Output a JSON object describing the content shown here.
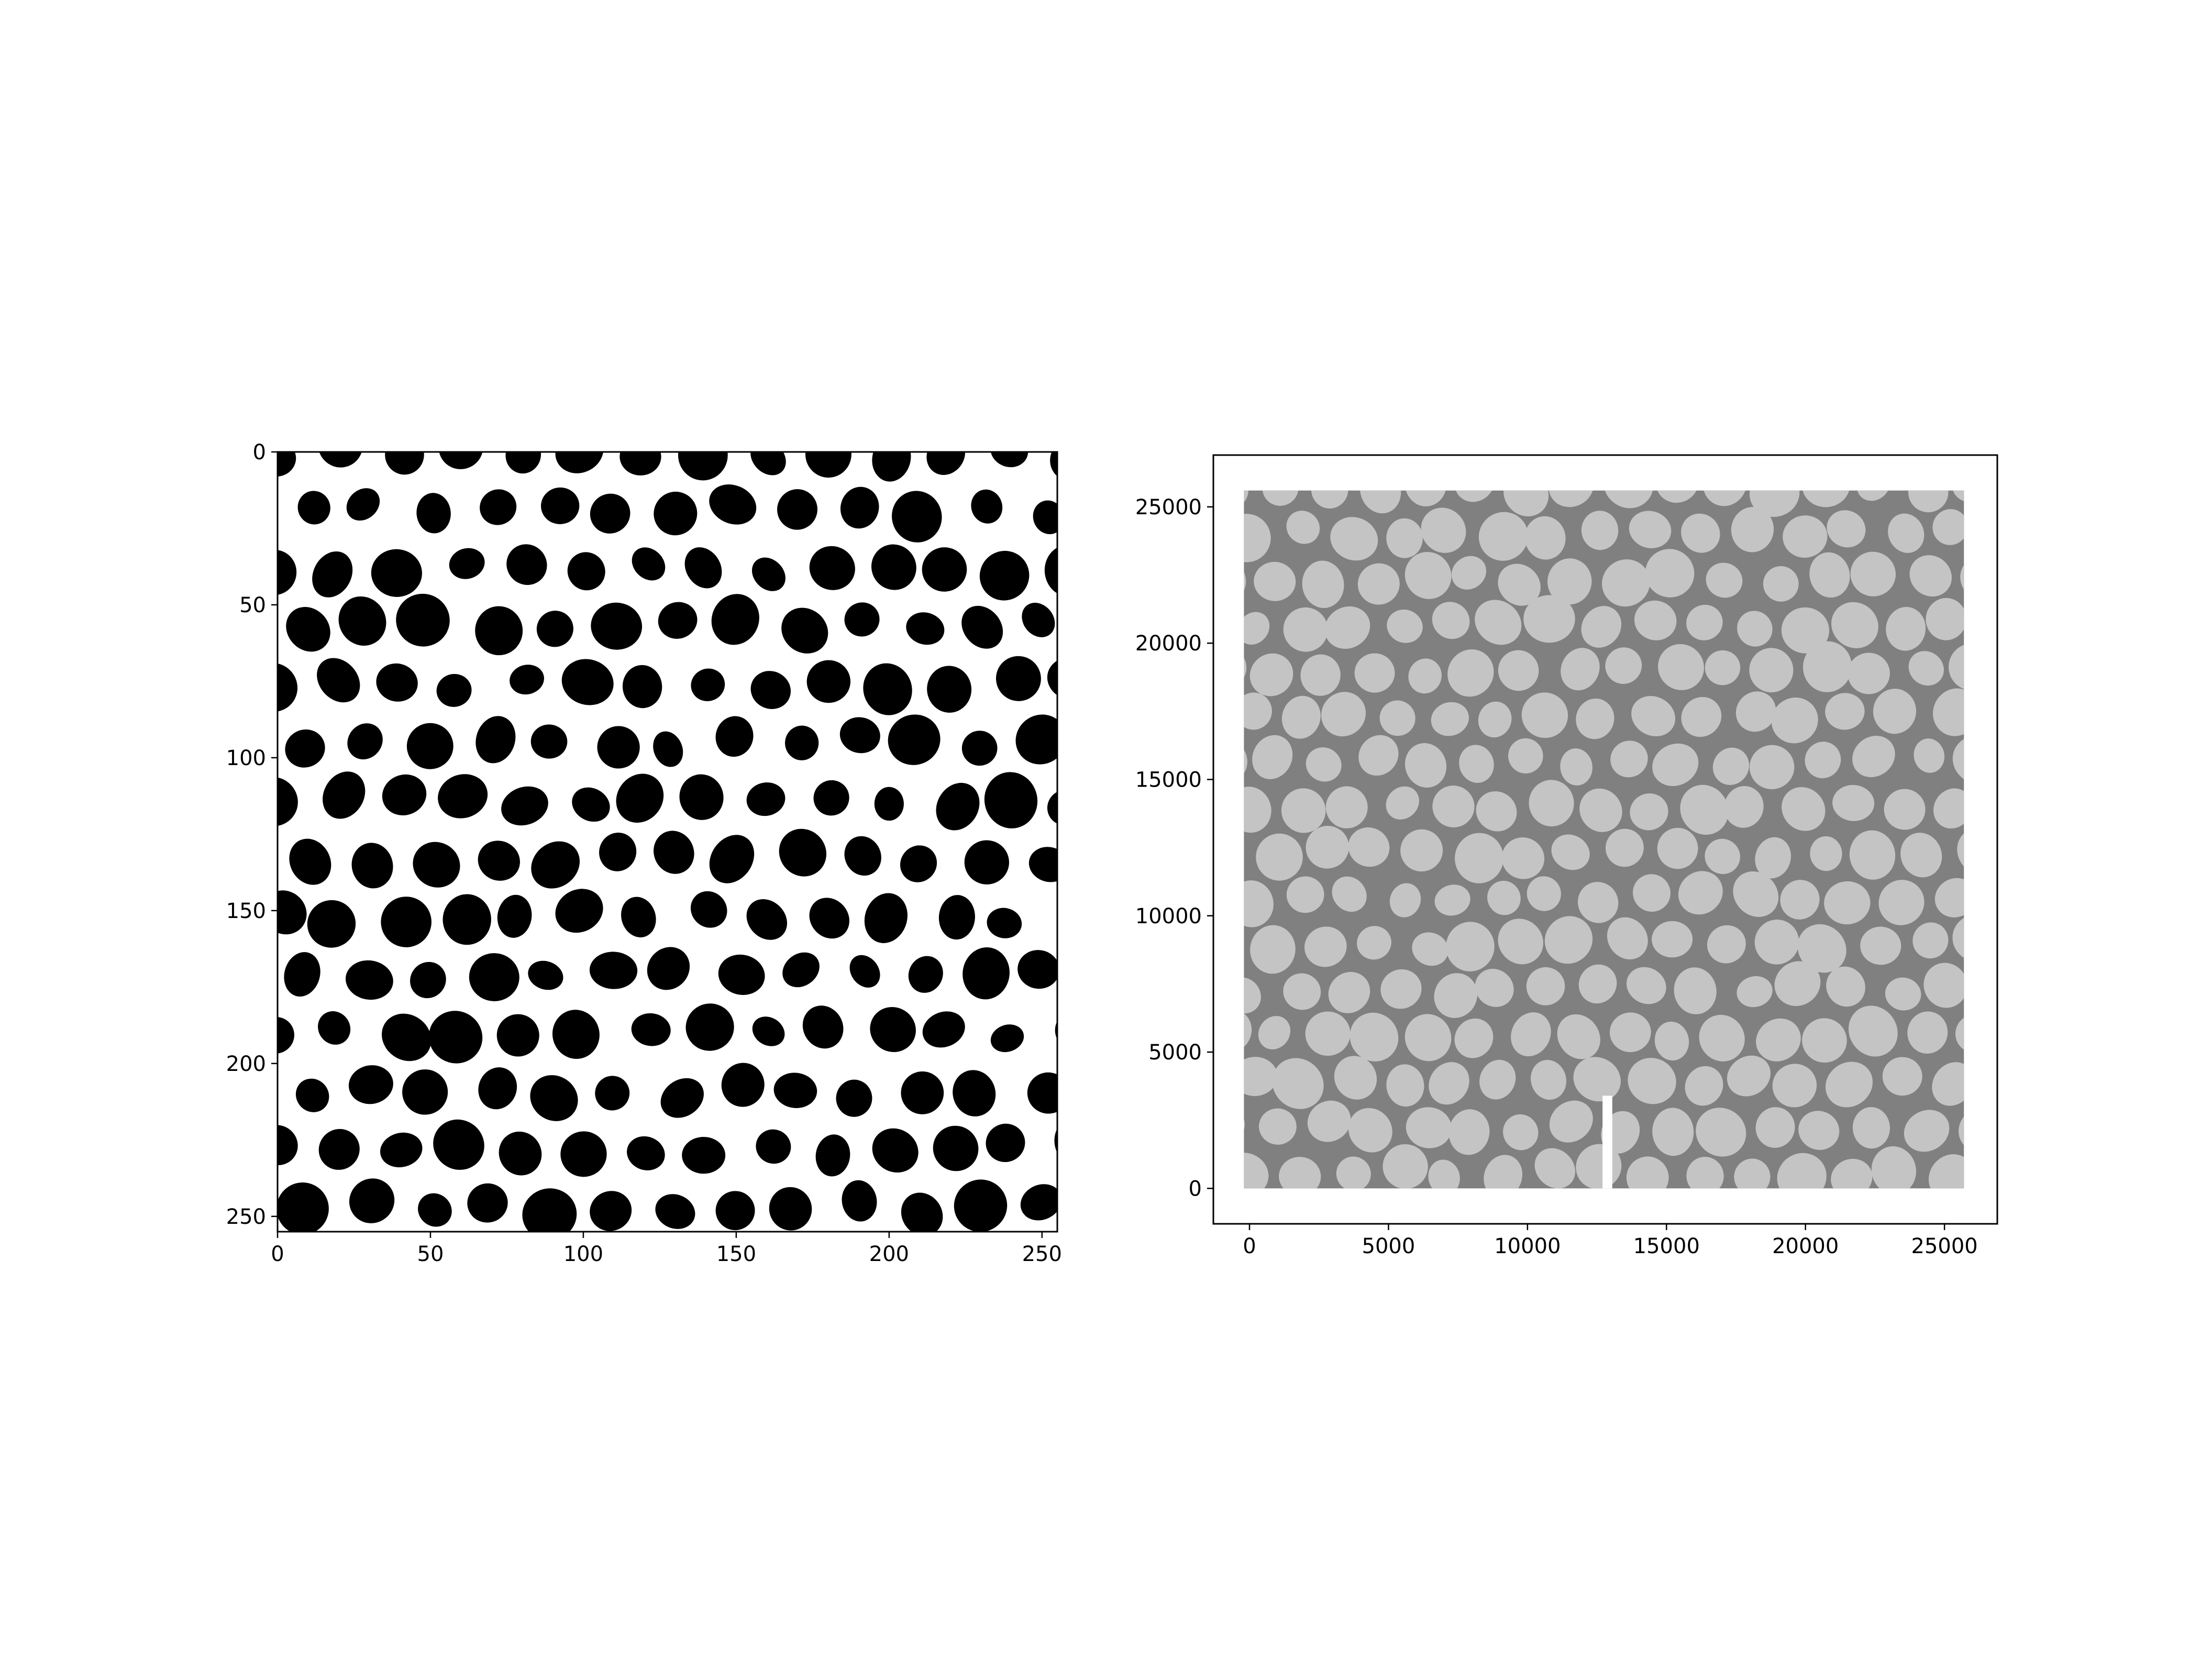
{
  "chart_data": [
    {
      "type": "heatmap",
      "title": "",
      "xlabel": "",
      "ylabel": "",
      "xlim": [
        0,
        255
      ],
      "ylim": [
        255,
        0
      ],
      "y_axis_inverted": true,
      "xticks": [
        0,
        50,
        100,
        150,
        200,
        250
      ],
      "yticks": [
        0,
        50,
        100,
        150,
        200,
        250
      ],
      "grid": false,
      "colormap": "binary (black grains on white background)",
      "colors": {
        "grain": "#000000",
        "background": "#ffffff"
      }
    },
    {
      "type": "scatter",
      "title": "",
      "xlabel": "",
      "ylabel": "",
      "xlim": [
        -1300,
        26900
      ],
      "ylim": [
        -1300,
        26900
      ],
      "xticks": [
        0,
        5000,
        10000,
        15000,
        20000,
        25000
      ],
      "yticks": [
        0,
        5000,
        10000,
        15000,
        20000,
        25000
      ],
      "grid": false,
      "data_extent": {
        "x": [
          -200,
          25700
        ],
        "y": [
          0,
          25600
        ]
      },
      "notch": {
        "x": [
          12700,
          13050
        ],
        "y": [
          0,
          3400
        ]
      },
      "colors": {
        "matrix": "#808080",
        "grain": "#c4c4c4",
        "notch": "#ffffff"
      }
    }
  ]
}
